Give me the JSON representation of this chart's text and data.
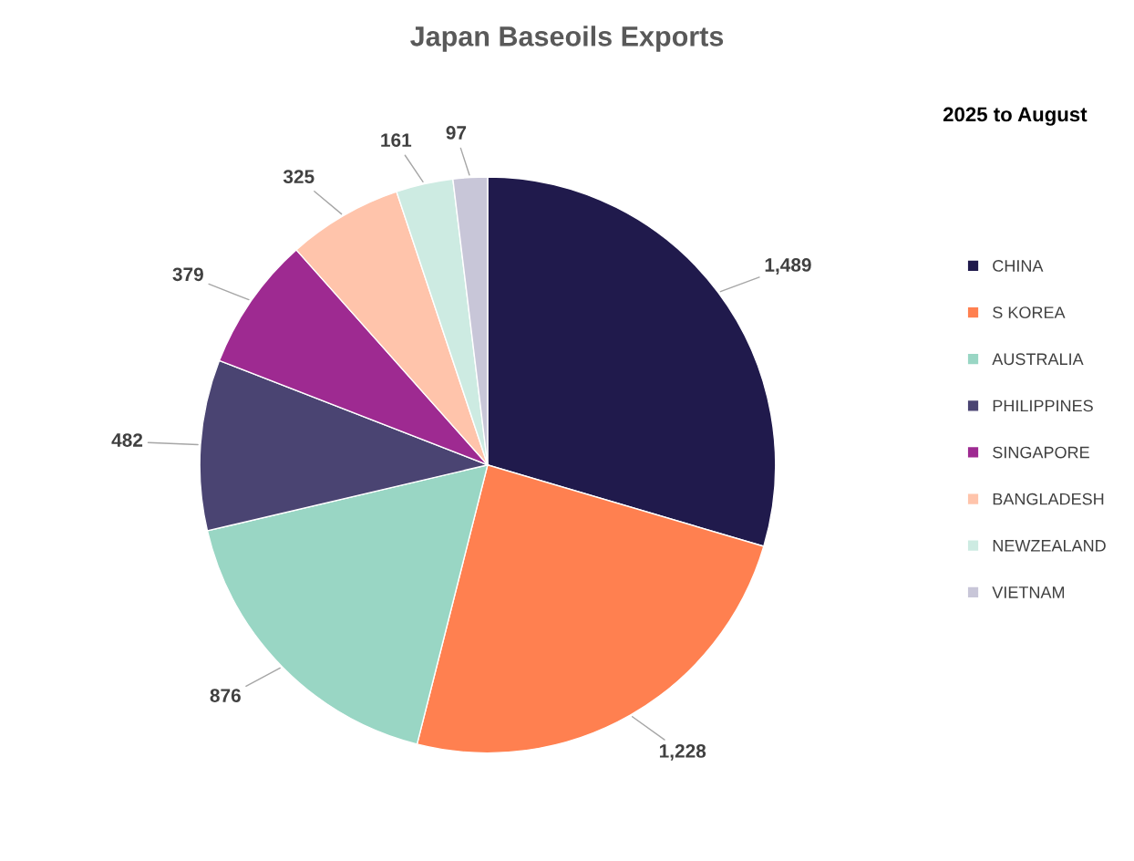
{
  "chart_data": {
    "type": "pie",
    "title": "Japan Baseoils Exports",
    "legend_title": "2025 to August",
    "categories": [
      "CHINA",
      "S KOREA",
      "AUSTRALIA",
      "PHILIPPINES",
      "SINGAPORE",
      "BANGLADESH",
      "NEWZEALAND",
      "VIETNAM"
    ],
    "values": [
      1489,
      1228,
      876,
      482,
      379,
      325,
      161,
      97
    ],
    "value_labels": [
      "1,489",
      "1,228",
      "876",
      "482",
      "379",
      "325",
      "161",
      "97"
    ],
    "colors": [
      "#201a4c",
      "#ff8050",
      "#99d6c4",
      "#4a4472",
      "#9e2a91",
      "#ffc4ab",
      "#cdebe2",
      "#c8c6d8"
    ],
    "legend": "right"
  }
}
